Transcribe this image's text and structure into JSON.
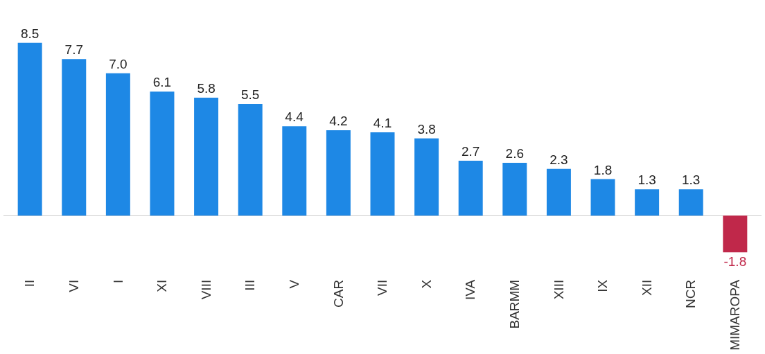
{
  "chart_data": {
    "type": "bar",
    "categories": [
      "II",
      "VI",
      "I",
      "XI",
      "VIII",
      "III",
      "V",
      "CAR",
      "VII",
      "X",
      "IVA",
      "BARMM",
      "XIII",
      "IX",
      "XII",
      "NCR",
      "MIMAROPA"
    ],
    "values": [
      8.5,
      7.7,
      7.0,
      6.1,
      5.8,
      5.5,
      4.4,
      4.2,
      4.1,
      3.8,
      2.7,
      2.6,
      2.3,
      1.8,
      1.3,
      1.3,
      -1.8
    ],
    "colors": [
      "#1e88e5",
      "#1e88e5",
      "#1e88e5",
      "#1e88e5",
      "#1e88e5",
      "#1e88e5",
      "#1e88e5",
      "#1e88e5",
      "#1e88e5",
      "#1e88e5",
      "#1e88e5",
      "#1e88e5",
      "#1e88e5",
      "#1e88e5",
      "#1e88e5",
      "#1e88e5",
      "#c0284a"
    ],
    "value_labels": [
      "8.5",
      "7.7",
      "7.0",
      "6.1",
      "5.8",
      "5.5",
      "4.4",
      "4.2",
      "4.1",
      "3.8",
      "2.7",
      "2.6",
      "2.3",
      "1.8",
      "1.3",
      "1.3",
      "-1.8"
    ]
  }
}
